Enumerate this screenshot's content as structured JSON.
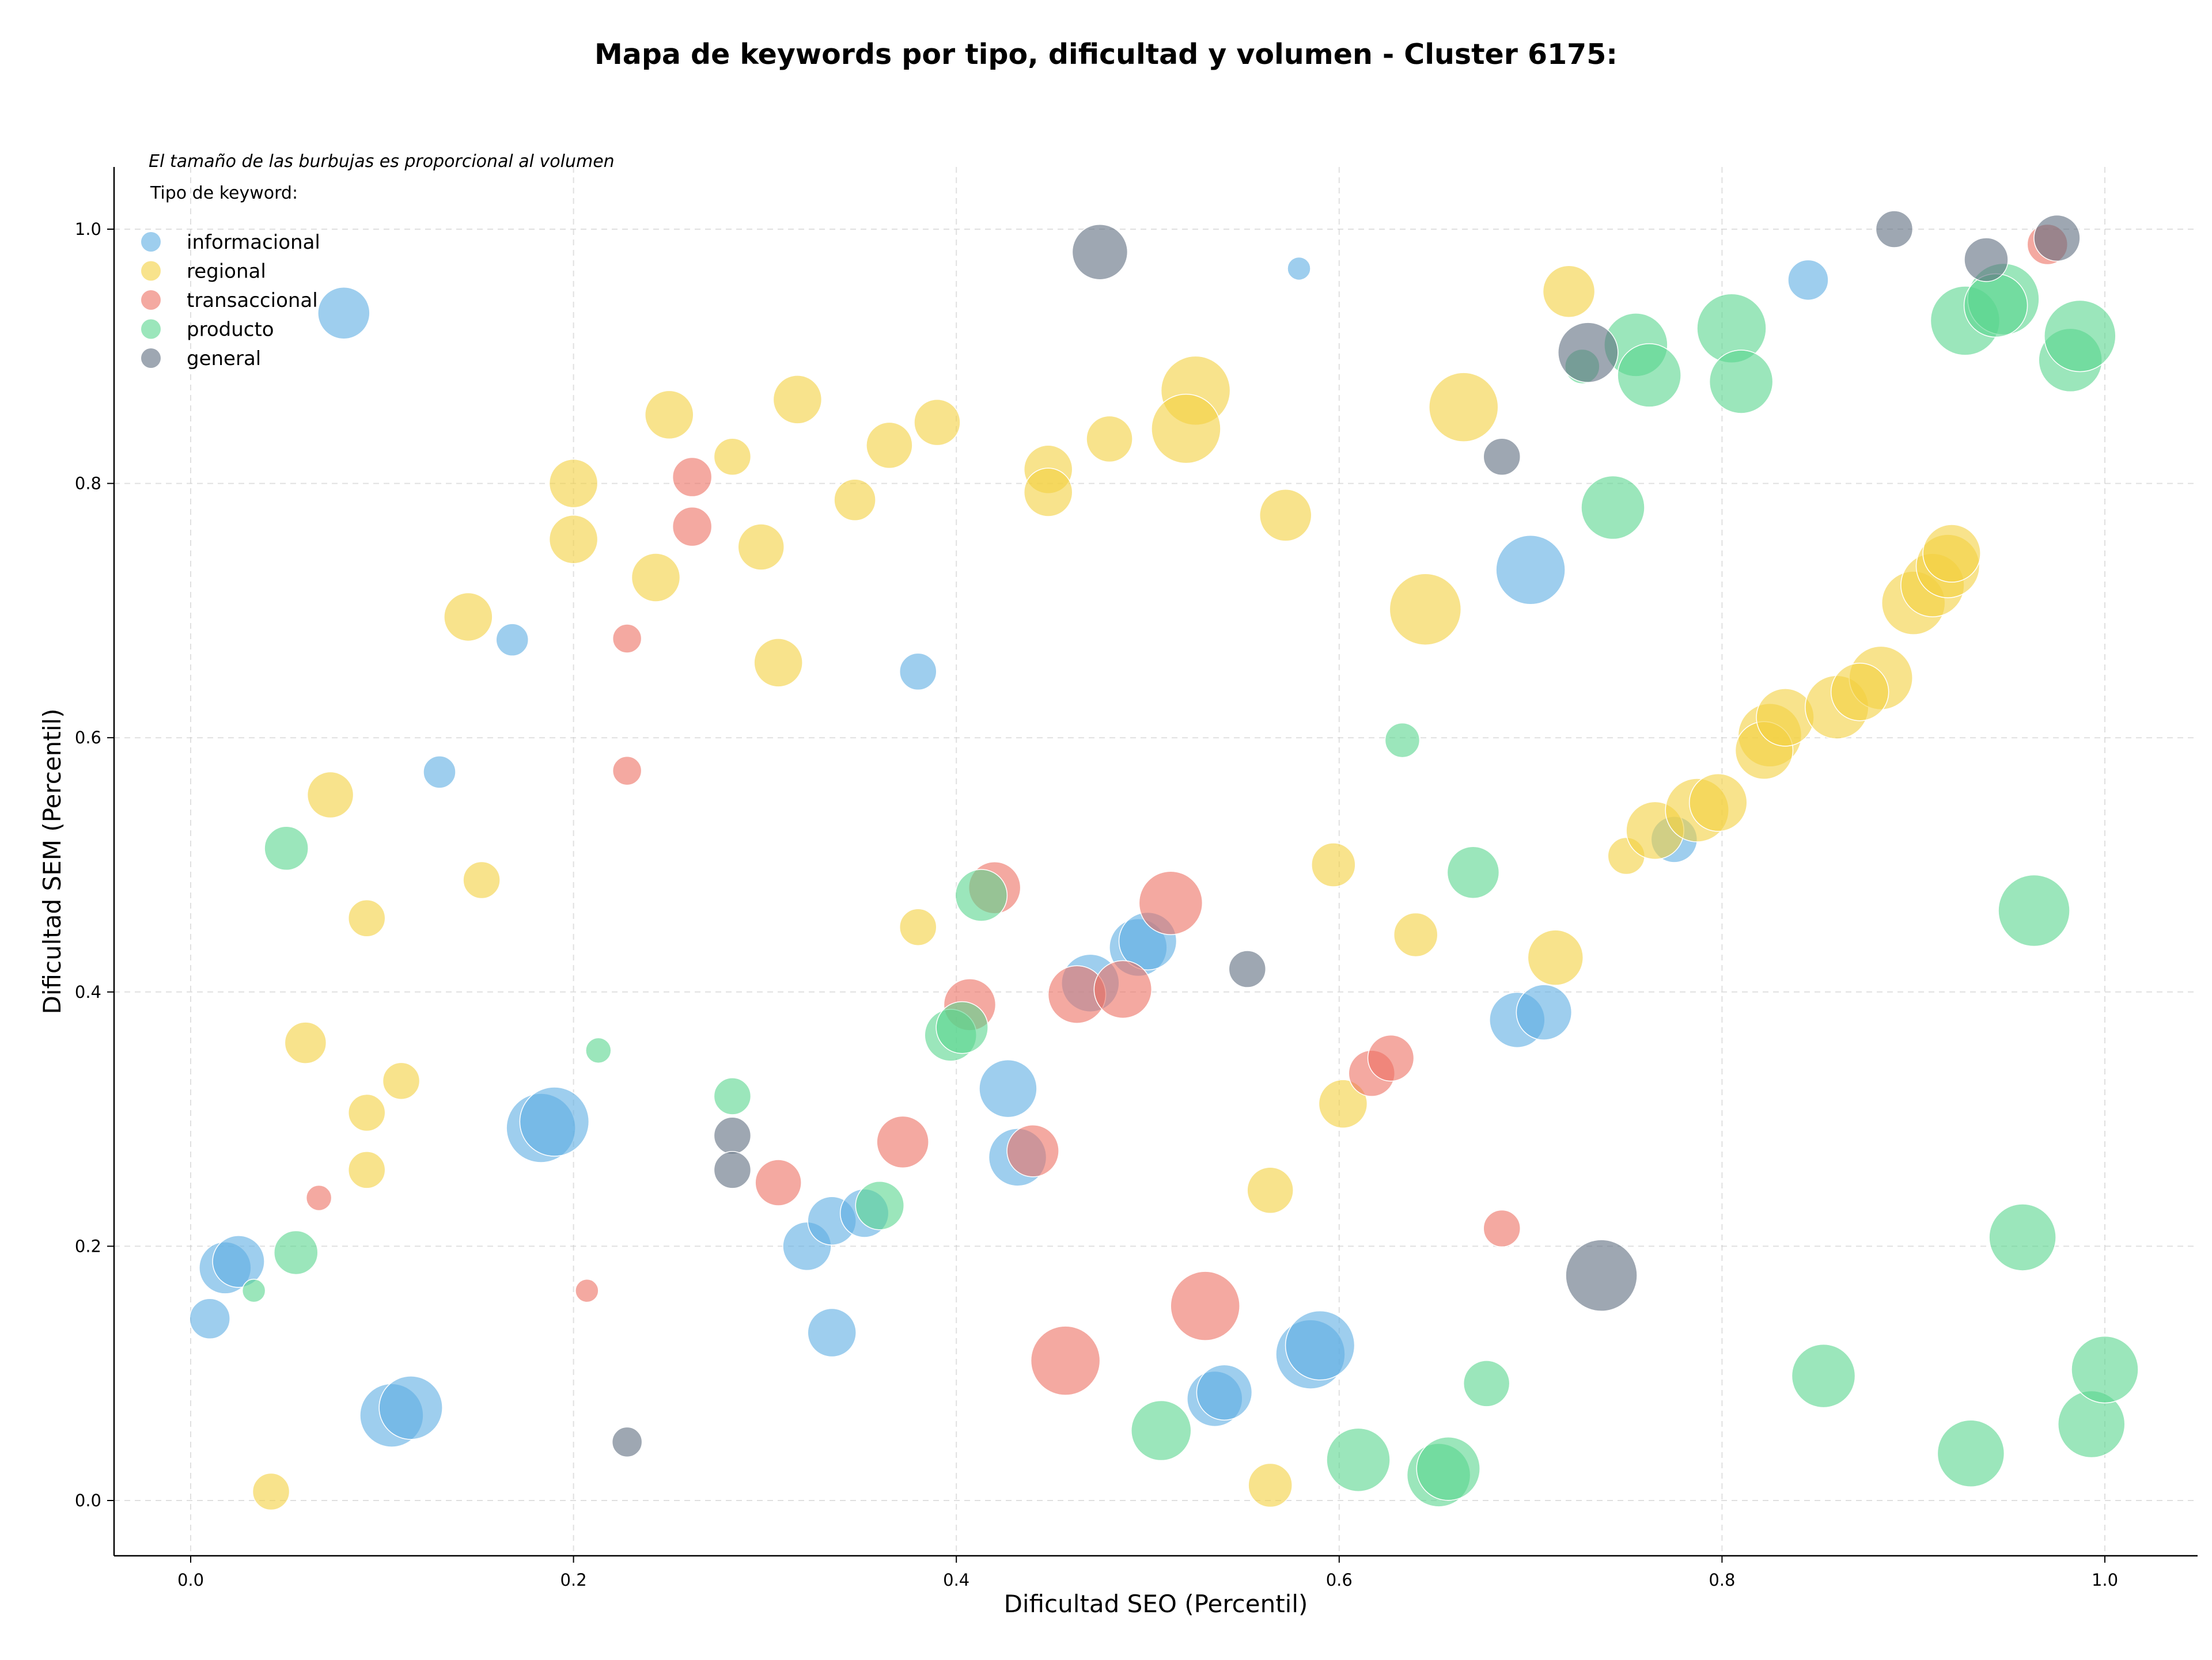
{
  "chart_data": {
    "type": "scatter",
    "title": "Mapa de keywords por tipo, dificultad y volumen - Cluster 6175:",
    "xlabel": "Dificultad SEO (Percentil)",
    "ylabel": "Dificultad SEM (Percentil)",
    "annotation": "El tamaño de las burbujas es proporcional al volumen",
    "legend_title": "Tipo de keyword:",
    "legend_position": "top-left",
    "xlim": [
      -0.04,
      1.05
    ],
    "ylim": [
      -0.043,
      1.05
    ],
    "xticks": [
      "0.0",
      "0.2",
      "0.4",
      "0.6",
      "0.8",
      "1.0"
    ],
    "yticks": [
      "0.0",
      "0.2",
      "0.4",
      "0.6",
      "0.8",
      "1.0"
    ],
    "grid": true,
    "series": [
      {
        "name": "informacional",
        "color": "#5dade2",
        "points": [
          [
            0.08,
            0.934,
            45
          ],
          [
            0.579,
            0.969,
            20
          ],
          [
            0.845,
            0.96,
            35
          ],
          [
            0.168,
            0.677,
            28
          ],
          [
            0.38,
            0.652,
            32
          ],
          [
            0.13,
            0.573,
            28
          ],
          [
            0.7,
            0.732,
            60
          ],
          [
            0.01,
            0.143,
            35
          ],
          [
            0.018,
            0.183,
            45
          ],
          [
            0.025,
            0.188,
            45
          ],
          [
            0.183,
            0.293,
            60
          ],
          [
            0.19,
            0.298,
            60
          ],
          [
            0.105,
            0.067,
            55
          ],
          [
            0.115,
            0.073,
            55
          ],
          [
            0.322,
            0.2,
            42
          ],
          [
            0.335,
            0.22,
            42
          ],
          [
            0.335,
            0.132,
            42
          ],
          [
            0.352,
            0.226,
            42
          ],
          [
            0.427,
            0.324,
            50
          ],
          [
            0.432,
            0.27,
            50
          ],
          [
            0.47,
            0.407,
            50
          ],
          [
            0.495,
            0.435,
            50
          ],
          [
            0.5,
            0.44,
            50
          ],
          [
            0.535,
            0.08,
            48
          ],
          [
            0.54,
            0.085,
            48
          ],
          [
            0.585,
            0.115,
            60
          ],
          [
            0.59,
            0.122,
            60
          ],
          [
            0.693,
            0.378,
            48
          ],
          [
            0.707,
            0.384,
            48
          ],
          [
            0.775,
            0.52,
            40
          ]
        ]
      },
      {
        "name": "regional",
        "color": "#f4d03f",
        "points": [
          [
            0.145,
            0.695,
            42
          ],
          [
            0.2,
            0.8,
            42
          ],
          [
            0.2,
            0.756,
            42
          ],
          [
            0.25,
            0.854,
            42
          ],
          [
            0.283,
            0.821,
            32
          ],
          [
            0.317,
            0.866,
            42
          ],
          [
            0.365,
            0.83,
            40
          ],
          [
            0.39,
            0.848,
            40
          ],
          [
            0.243,
            0.726,
            42
          ],
          [
            0.298,
            0.75,
            40
          ],
          [
            0.347,
            0.787,
            36
          ],
          [
            0.307,
            0.659,
            42
          ],
          [
            0.448,
            0.811,
            42
          ],
          [
            0.448,
            0.793,
            42
          ],
          [
            0.48,
            0.835,
            40
          ],
          [
            0.525,
            0.873,
            60
          ],
          [
            0.52,
            0.843,
            60
          ],
          [
            0.572,
            0.775,
            45
          ],
          [
            0.665,
            0.86,
            60
          ],
          [
            0.72,
            0.951,
            45
          ],
          [
            0.645,
            0.701,
            62
          ],
          [
            0.073,
            0.555,
            40
          ],
          [
            0.152,
            0.488,
            32
          ],
          [
            0.092,
            0.458,
            32
          ],
          [
            0.06,
            0.36,
            36
          ],
          [
            0.11,
            0.33,
            32
          ],
          [
            0.092,
            0.305,
            32
          ],
          [
            0.092,
            0.26,
            32
          ],
          [
            0.38,
            0.451,
            32
          ],
          [
            0.597,
            0.5,
            38
          ],
          [
            0.64,
            0.445,
            38
          ],
          [
            0.713,
            0.427,
            48
          ],
          [
            0.602,
            0.312,
            42
          ],
          [
            0.564,
            0.244,
            40
          ],
          [
            0.042,
            0.007,
            32
          ],
          [
            0.564,
            0.012,
            38
          ],
          [
            0.75,
            0.507,
            32
          ],
          [
            0.765,
            0.527,
            50
          ],
          [
            0.787,
            0.543,
            55
          ],
          [
            0.798,
            0.549,
            50
          ],
          [
            0.825,
            0.602,
            55
          ],
          [
            0.822,
            0.59,
            50
          ],
          [
            0.833,
            0.616,
            50
          ],
          [
            0.86,
            0.624,
            55
          ],
          [
            0.883,
            0.647,
            55
          ],
          [
            0.872,
            0.636,
            50
          ],
          [
            0.9,
            0.706,
            55
          ],
          [
            0.91,
            0.72,
            55
          ],
          [
            0.918,
            0.735,
            55
          ],
          [
            0.92,
            0.745,
            50
          ]
        ]
      },
      {
        "name": "transaccional",
        "color": "#ec7063",
        "points": [
          [
            0.262,
            0.805,
            34
          ],
          [
            0.262,
            0.766,
            34
          ],
          [
            0.228,
            0.678,
            25
          ],
          [
            0.228,
            0.574,
            25
          ],
          [
            0.067,
            0.238,
            22
          ],
          [
            0.207,
            0.165,
            20
          ],
          [
            0.307,
            0.25,
            40
          ],
          [
            0.372,
            0.282,
            45
          ],
          [
            0.407,
            0.39,
            45
          ],
          [
            0.42,
            0.482,
            45
          ],
          [
            0.44,
            0.275,
            45
          ],
          [
            0.463,
            0.398,
            50
          ],
          [
            0.487,
            0.402,
            50
          ],
          [
            0.512,
            0.47,
            55
          ],
          [
            0.53,
            0.153,
            60
          ],
          [
            0.457,
            0.11,
            60
          ],
          [
            0.617,
            0.336,
            40
          ],
          [
            0.627,
            0.348,
            40
          ],
          [
            0.685,
            0.214,
            32
          ],
          [
            0.97,
            0.988,
            35
          ]
        ]
      },
      {
        "name": "producto",
        "color": "#58d68d",
        "points": [
          [
            0.05,
            0.513,
            38
          ],
          [
            0.055,
            0.195,
            38
          ],
          [
            0.033,
            0.165,
            20
          ],
          [
            0.213,
            0.354,
            22
          ],
          [
            0.283,
            0.318,
            32
          ],
          [
            0.36,
            0.232,
            42
          ],
          [
            0.397,
            0.366,
            45
          ],
          [
            0.403,
            0.372,
            45
          ],
          [
            0.413,
            0.476,
            45
          ],
          [
            0.507,
            0.055,
            52
          ],
          [
            0.61,
            0.032,
            55
          ],
          [
            0.652,
            0.02,
            55
          ],
          [
            0.657,
            0.025,
            55
          ],
          [
            0.677,
            0.092,
            40
          ],
          [
            0.633,
            0.598,
            30
          ],
          [
            0.67,
            0.494,
            45
          ],
          [
            0.743,
            0.781,
            55
          ],
          [
            0.727,
            0.892,
            30
          ],
          [
            0.755,
            0.909,
            55
          ],
          [
            0.762,
            0.885,
            55
          ],
          [
            0.805,
            0.922,
            60
          ],
          [
            0.81,
            0.88,
            55
          ],
          [
            0.853,
            0.098,
            55
          ],
          [
            0.927,
            0.928,
            60
          ],
          [
            0.947,
            0.945,
            62
          ],
          [
            0.943,
            0.94,
            55
          ],
          [
            0.963,
            0.464,
            62
          ],
          [
            0.957,
            0.207,
            58
          ],
          [
            0.982,
            0.897,
            55
          ],
          [
            0.987,
            0.916,
            62
          ],
          [
            0.93,
            0.037,
            58
          ],
          [
            0.993,
            0.06,
            58
          ],
          [
            1.0,
            0.103,
            58
          ]
        ]
      },
      {
        "name": "general",
        "color": "#5d6d7e",
        "points": [
          [
            0.475,
            0.982,
            48
          ],
          [
            0.228,
            0.046,
            26
          ],
          [
            0.283,
            0.287,
            32
          ],
          [
            0.283,
            0.26,
            32
          ],
          [
            0.552,
            0.418,
            32
          ],
          [
            0.685,
            0.821,
            32
          ],
          [
            0.73,
            0.903,
            52
          ],
          [
            0.737,
            0.177,
            62
          ],
          [
            0.89,
            1.0,
            32
          ],
          [
            0.938,
            0.976,
            38
          ],
          [
            0.975,
            0.993,
            40
          ]
        ]
      }
    ]
  }
}
